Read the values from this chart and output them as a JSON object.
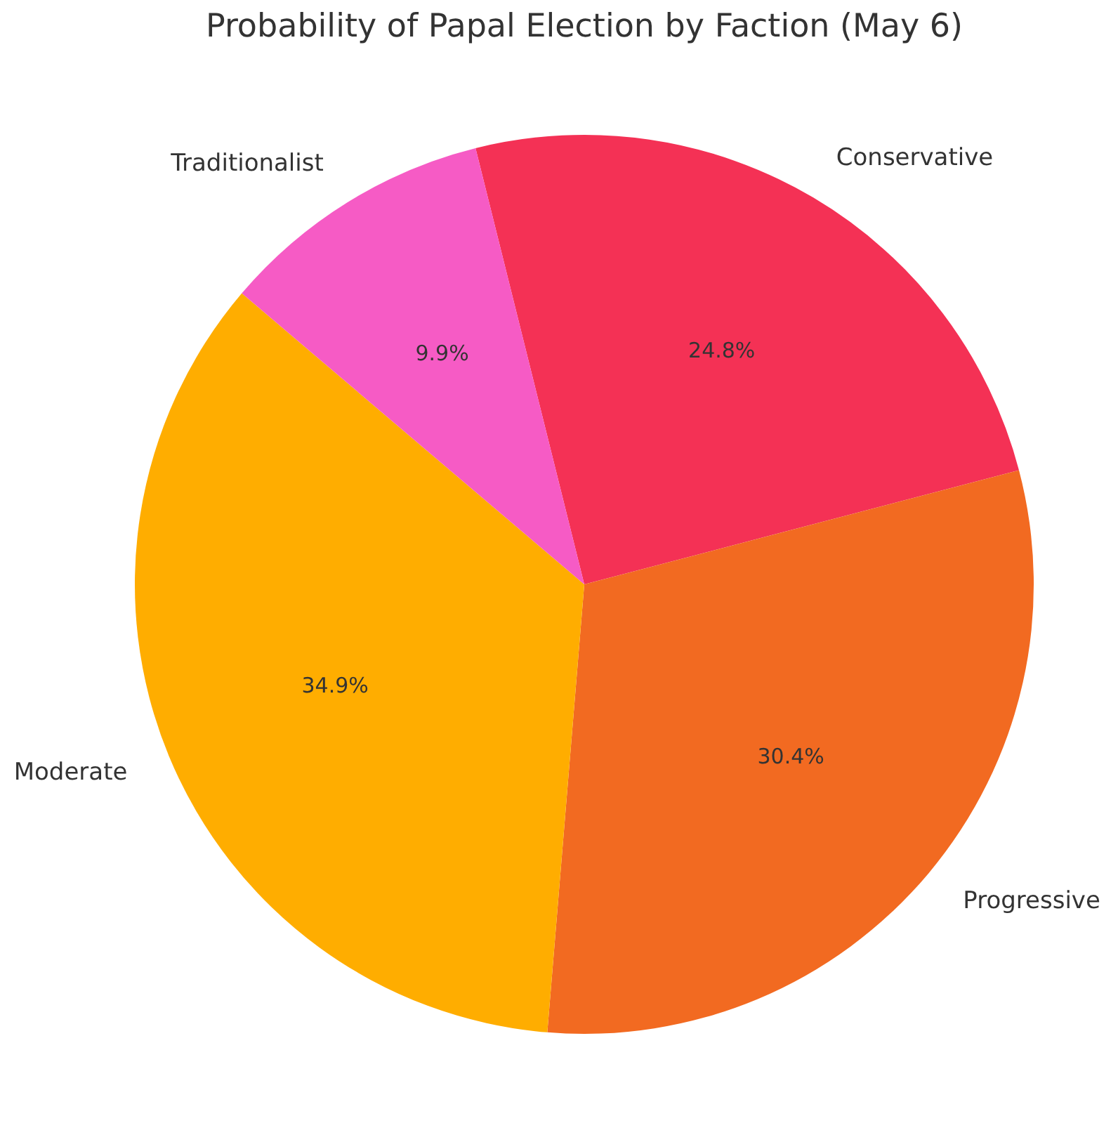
{
  "chart_data": {
    "type": "pie",
    "title": "Probability of Papal Election by Faction (May 6)",
    "categories": [
      "Conservative",
      "Progressive",
      "Moderate",
      "Traditionalist"
    ],
    "values": [
      24.8,
      30.4,
      34.9,
      9.9
    ],
    "colors": [
      "#f43155",
      "#f26a21",
      "#ffad00",
      "#f65bc5"
    ],
    "value_labels": [
      "24.8%",
      "30.4%",
      "34.9%",
      "9.9%"
    ],
    "legend": false
  }
}
